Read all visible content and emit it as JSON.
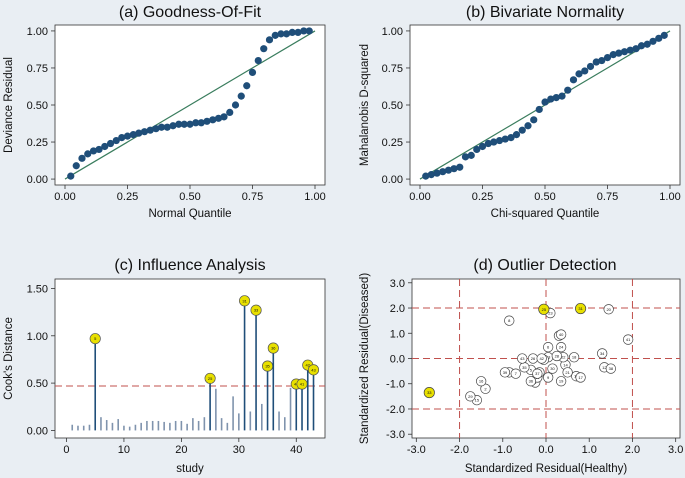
{
  "chart_data": [
    {
      "type": "scatter",
      "title": "(a) Goodness-Of-Fit",
      "xlabel": "Normal Quantile",
      "ylabel": "Deviance Residual",
      "xlim": [
        0,
        1
      ],
      "ylim": [
        0,
        1
      ],
      "xticks": [
        "0.00",
        "0.25",
        "0.50",
        "0.75",
        "1.00"
      ],
      "yticks": [
        "0.00",
        "0.25",
        "0.50",
        "0.75",
        "1.00"
      ],
      "reference_line": "diagonal",
      "points_x": [
        0.023,
        0.045,
        0.068,
        0.091,
        0.114,
        0.136,
        0.159,
        0.182,
        0.205,
        0.227,
        0.25,
        0.273,
        0.295,
        0.318,
        0.341,
        0.364,
        0.386,
        0.409,
        0.432,
        0.455,
        0.477,
        0.5,
        0.523,
        0.545,
        0.568,
        0.591,
        0.614,
        0.636,
        0.659,
        0.682,
        0.705,
        0.727,
        0.75,
        0.773,
        0.795,
        0.818,
        0.841,
        0.864,
        0.886,
        0.909,
        0.932,
        0.955,
        0.977
      ],
      "points_y": [
        0.02,
        0.09,
        0.14,
        0.17,
        0.19,
        0.2,
        0.22,
        0.24,
        0.26,
        0.28,
        0.29,
        0.3,
        0.31,
        0.32,
        0.33,
        0.34,
        0.35,
        0.35,
        0.36,
        0.37,
        0.37,
        0.37,
        0.38,
        0.38,
        0.39,
        0.4,
        0.41,
        0.42,
        0.45,
        0.5,
        0.56,
        0.63,
        0.72,
        0.8,
        0.88,
        0.94,
        0.97,
        0.98,
        0.98,
        0.99,
        0.99,
        1.0,
        1.0
      ]
    },
    {
      "type": "scatter",
      "title": "(b) Bivariate Normality",
      "xlabel": "Chi-squared Quantile",
      "ylabel": "Mahalanobis D-squared",
      "xlim": [
        0,
        1
      ],
      "ylim": [
        0,
        1
      ],
      "xticks": [
        "0.00",
        "0.25",
        "0.50",
        "0.75",
        "1.00"
      ],
      "yticks": [
        "0.00",
        "0.25",
        "0.50",
        "0.75",
        "1.00"
      ],
      "reference_line": "diagonal",
      "points_x": [
        0.023,
        0.045,
        0.068,
        0.091,
        0.114,
        0.136,
        0.159,
        0.182,
        0.205,
        0.227,
        0.25,
        0.273,
        0.295,
        0.318,
        0.341,
        0.364,
        0.386,
        0.409,
        0.432,
        0.455,
        0.477,
        0.5,
        0.523,
        0.545,
        0.568,
        0.591,
        0.614,
        0.636,
        0.659,
        0.682,
        0.705,
        0.727,
        0.75,
        0.773,
        0.795,
        0.818,
        0.841,
        0.864,
        0.886,
        0.909,
        0.932,
        0.955,
        0.977
      ],
      "points_y": [
        0.02,
        0.03,
        0.04,
        0.05,
        0.06,
        0.07,
        0.08,
        0.15,
        0.16,
        0.2,
        0.22,
        0.24,
        0.25,
        0.26,
        0.27,
        0.28,
        0.3,
        0.33,
        0.36,
        0.4,
        0.47,
        0.52,
        0.54,
        0.55,
        0.56,
        0.6,
        0.67,
        0.71,
        0.73,
        0.76,
        0.79,
        0.8,
        0.82,
        0.84,
        0.85,
        0.86,
        0.87,
        0.88,
        0.9,
        0.91,
        0.93,
        0.95,
        0.97
      ]
    },
    {
      "type": "bar",
      "title": "(c) Influence Analysis",
      "xlabel": "study",
      "ylabel": "Cook's Distance",
      "xlim": [
        0,
        44
      ],
      "ylim": [
        0,
        1.5
      ],
      "xticks": [
        "0",
        "10",
        "20",
        "30",
        "40"
      ],
      "yticks": [
        "0.00",
        "0.50",
        "1.00",
        "1.50"
      ],
      "threshold": 0.47,
      "studies": [
        1,
        2,
        3,
        4,
        5,
        6,
        7,
        8,
        9,
        10,
        11,
        12,
        13,
        14,
        15,
        16,
        17,
        18,
        19,
        20,
        21,
        22,
        23,
        24,
        25,
        26,
        27,
        28,
        29,
        30,
        31,
        32,
        33,
        34,
        35,
        36,
        37,
        38,
        39,
        40,
        41,
        42,
        43
      ],
      "values": [
        0.06,
        0.05,
        0.05,
        0.06,
        0.97,
        0.14,
        0.11,
        0.08,
        0.12,
        0.05,
        0.04,
        0.06,
        0.08,
        0.1,
        0.1,
        0.1,
        0.09,
        0.08,
        0.1,
        0.1,
        0.07,
        0.13,
        0.1,
        0.14,
        0.55,
        0.44,
        0.13,
        0.08,
        0.36,
        0.18,
        1.37,
        0.2,
        1.27,
        0.28,
        0.68,
        0.87,
        0.2,
        0.14,
        0.45,
        0.49,
        0.49,
        0.69,
        0.64
      ],
      "highlighted": [
        5,
        25,
        31,
        33,
        35,
        36,
        40,
        41,
        42,
        43
      ]
    },
    {
      "type": "scatter",
      "title": "(d) Outlier Detection",
      "xlabel": "Standardized Residual(Healthy)",
      "ylabel": "Standardized Residual(Diseased)",
      "xlim": [
        -3,
        3
      ],
      "ylim": [
        -3,
        3
      ],
      "xticks": [
        "-3.0",
        "-2.0",
        "-1.0",
        "0.0",
        "1.0",
        "2.0",
        "3.0"
      ],
      "yticks": [
        "-3.0",
        "-2.0",
        "-1.0",
        "0.0",
        "1.0",
        "2.0",
        "3.0"
      ],
      "vlines": [
        -2,
        0,
        2
      ],
      "hlines": [
        -2,
        0,
        2
      ],
      "points": [
        {
          "id": "1",
          "x": -0.85,
          "y": -0.55
        },
        {
          "id": "2",
          "x": -1.4,
          "y": -1.2
        },
        {
          "id": "3",
          "x": 0.3,
          "y": 0.9
        },
        {
          "id": "4",
          "x": -0.25,
          "y": -0.95
        },
        {
          "id": "5",
          "x": -0.35,
          "y": -0.45
        },
        {
          "id": "6",
          "x": 0.05,
          "y": 0.45
        },
        {
          "id": "7",
          "x": -0.7,
          "y": -0.6
        },
        {
          "id": "8",
          "x": -0.85,
          "y": 1.5
        },
        {
          "id": "9",
          "x": 0.05,
          "y": -0.75
        },
        {
          "id": "10",
          "x": 0.7,
          "y": -0.7
        },
        {
          "id": "11",
          "x": -0.2,
          "y": -0.75
        },
        {
          "id": "12",
          "x": 1.35,
          "y": -0.35
        },
        {
          "id": "13",
          "x": 0.05,
          "y": 0.05
        },
        {
          "id": "14",
          "x": 0.45,
          "y": -0.25
        },
        {
          "id": "15",
          "x": -1.6,
          "y": -1.65
        },
        {
          "id": "16",
          "x": -1.5,
          "y": -0.9
        },
        {
          "id": "17",
          "x": 0.8,
          "y": -0.75
        },
        {
          "id": "18",
          "x": 0.65,
          "y": 0.05
        },
        {
          "id": "19",
          "x": 0.35,
          "y": -0.9
        },
        {
          "id": "20",
          "x": 1.45,
          "y": 1.95
        },
        {
          "id": "21",
          "x": 0.5,
          "y": -0.55
        },
        {
          "id": "22",
          "x": 0.4,
          "y": 0.05
        },
        {
          "id": "23",
          "x": 0.1,
          "y": 1.8
        },
        {
          "id": "24",
          "x": 0.35,
          "y": 0.45
        },
        {
          "id": "25",
          "x": -0.05,
          "y": 1.95,
          "highlighted": true
        },
        {
          "id": "26",
          "x": -0.3,
          "y": 0.0
        },
        {
          "id": "27",
          "x": -0.05,
          "y": -0.05
        },
        {
          "id": "28",
          "x": 0.25,
          "y": 0.1
        },
        {
          "id": "29",
          "x": -1.75,
          "y": -1.5
        },
        {
          "id": "30",
          "x": 0.15,
          "y": -0.4
        },
        {
          "id": "31",
          "x": 0.8,
          "y": 1.98,
          "highlighted": true
        },
        {
          "id": "32",
          "x": -0.15,
          "y": -0.55
        },
        {
          "id": "33",
          "x": -2.7,
          "y": -1.35,
          "highlighted": true
        },
        {
          "id": "34",
          "x": 1.3,
          "y": 0.2
        },
        {
          "id": "35",
          "x": -0.5,
          "y": -0.35
        },
        {
          "id": "36",
          "x": -0.35,
          "y": -0.9
        },
        {
          "id": "37",
          "x": -0.2,
          "y": -0.6
        },
        {
          "id": "38",
          "x": 1.5,
          "y": -0.4
        },
        {
          "id": "39",
          "x": -0.95,
          "y": -0.55
        },
        {
          "id": "40",
          "x": 0.35,
          "y": 0.95
        },
        {
          "id": "41",
          "x": 1.9,
          "y": 0.75
        },
        {
          "id": "42",
          "x": -0.1,
          "y": 0.0
        },
        {
          "id": "43",
          "x": -0.55,
          "y": 0.0
        }
      ]
    }
  ]
}
